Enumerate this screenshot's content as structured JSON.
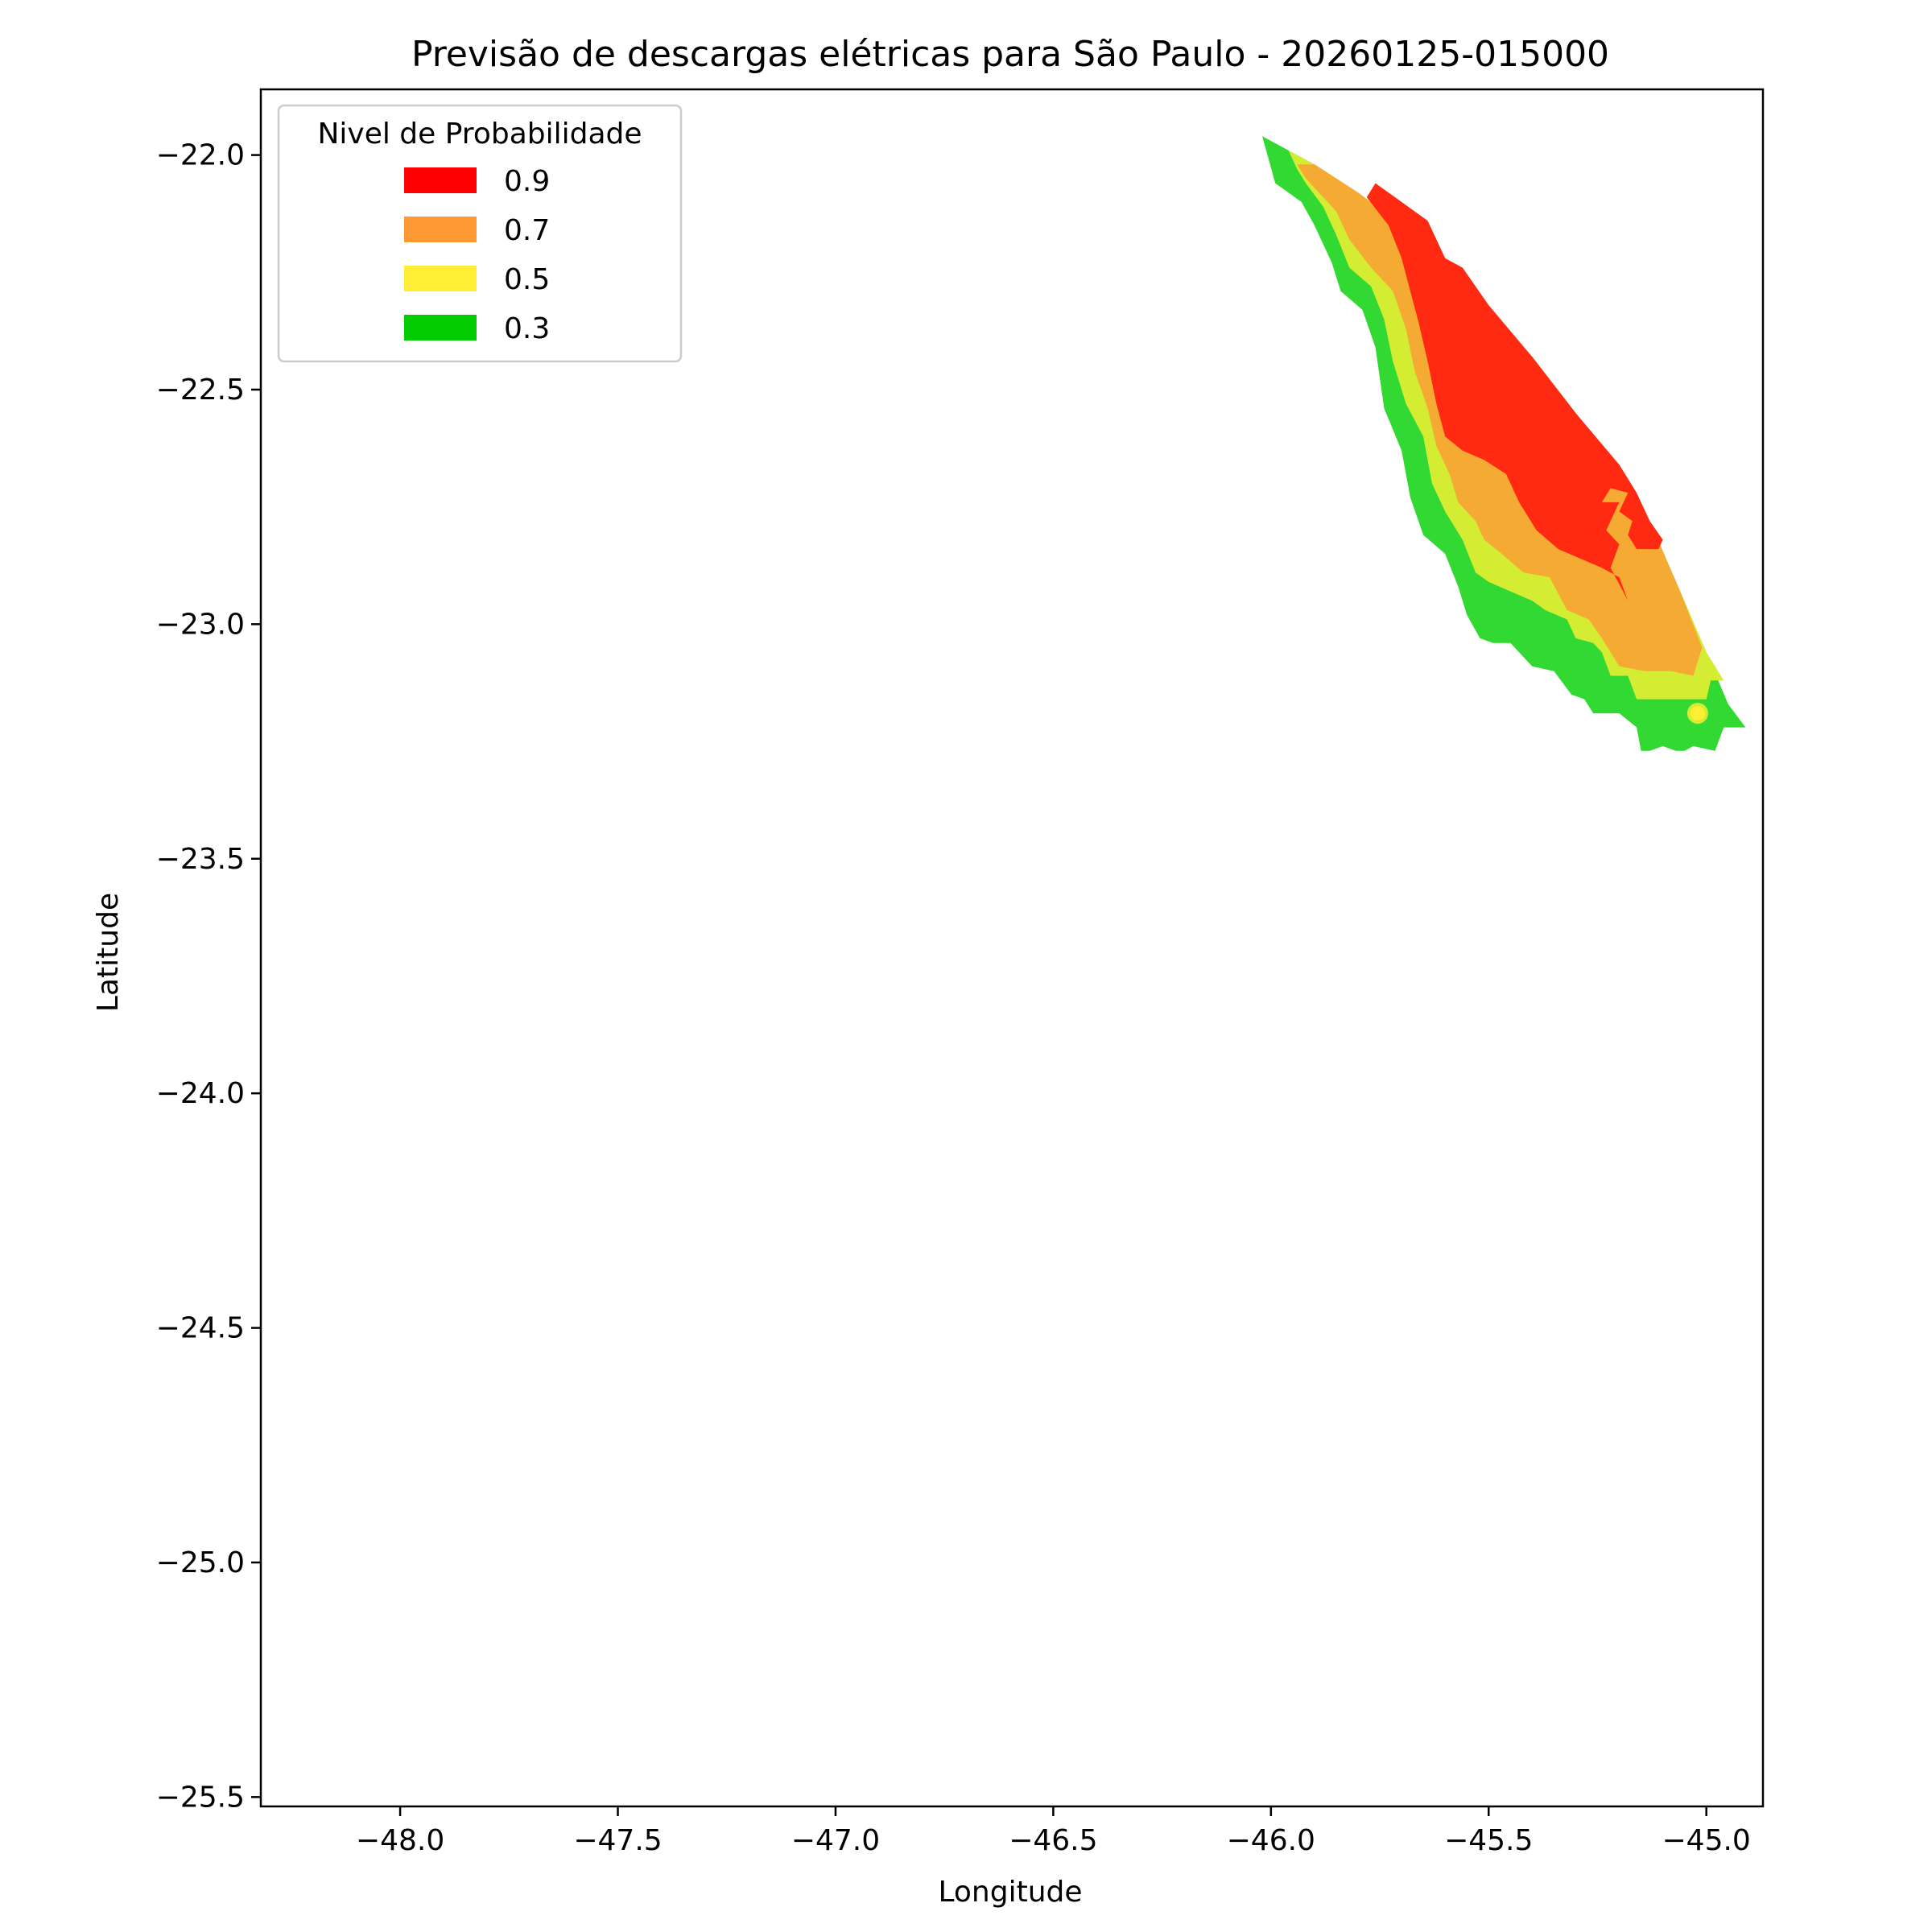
{
  "chart_data": {
    "type": "contour",
    "title": "Previsão de descargas elétricas para São Paulo - 20260125-015000",
    "xlabel": "Longitude",
    "ylabel": "Latitude",
    "xlim": [
      -48.32,
      -44.87
    ],
    "ylim": [
      -25.52,
      -21.86
    ],
    "xticks": [
      -48.0,
      -47.5,
      -47.0,
      -46.5,
      -46.0,
      -45.5,
      -45.0
    ],
    "xtick_labels": [
      "−48.0",
      "−47.5",
      "−47.0",
      "−46.5",
      "−46.0",
      "−45.5",
      "−45.0"
    ],
    "yticks": [
      -22.0,
      -22.5,
      -23.0,
      -23.5,
      -24.0,
      -24.5,
      -25.0,
      -25.5
    ],
    "ytick_labels": [
      "−22.0",
      "−22.5",
      "−23.0",
      "−23.5",
      "−24.0",
      "−24.5",
      "−25.0",
      "−25.5"
    ],
    "grid": false,
    "legend": {
      "title": "Nivel de Probabilidade",
      "placement": "upper-left",
      "entries": [
        {
          "label": "0.9",
          "color": "#ff0000"
        },
        {
          "label": "0.7",
          "color": "#ff9933"
        },
        {
          "label": "0.5",
          "color": "#ffee33"
        },
        {
          "label": "0.3",
          "color": "#00cc00"
        }
      ]
    },
    "levels": [
      {
        "level": 0.3,
        "color": "#33d933",
        "polygon": [
          [
            -46.02,
            -21.96
          ],
          [
            -45.9,
            -22.02
          ],
          [
            -45.8,
            -22.08
          ],
          [
            -45.7,
            -22.15
          ],
          [
            -45.6,
            -22.23
          ],
          [
            -45.5,
            -22.33
          ],
          [
            -45.4,
            -22.43
          ],
          [
            -45.3,
            -22.55
          ],
          [
            -45.2,
            -22.67
          ],
          [
            -45.13,
            -22.78
          ],
          [
            -45.06,
            -22.93
          ],
          [
            -45.0,
            -23.06
          ],
          [
            -44.95,
            -23.17
          ],
          [
            -44.91,
            -23.22
          ],
          [
            -44.96,
            -23.22
          ],
          [
            -44.98,
            -23.27
          ],
          [
            -45.03,
            -23.26
          ],
          [
            -45.05,
            -23.27
          ],
          [
            -45.07,
            -23.27
          ],
          [
            -45.1,
            -23.26
          ],
          [
            -45.13,
            -23.27
          ],
          [
            -45.15,
            -23.27
          ],
          [
            -45.16,
            -23.22
          ],
          [
            -45.2,
            -23.19
          ],
          [
            -45.26,
            -23.19
          ],
          [
            -45.28,
            -23.16
          ],
          [
            -45.31,
            -23.15
          ],
          [
            -45.35,
            -23.1
          ],
          [
            -45.4,
            -23.09
          ],
          [
            -45.45,
            -23.04
          ],
          [
            -45.49,
            -23.04
          ],
          [
            -45.52,
            -23.03
          ],
          [
            -45.55,
            -22.98
          ],
          [
            -45.57,
            -22.92
          ],
          [
            -45.6,
            -22.85
          ],
          [
            -45.65,
            -22.81
          ],
          [
            -45.68,
            -22.73
          ],
          [
            -45.7,
            -22.63
          ],
          [
            -45.74,
            -22.54
          ],
          [
            -45.76,
            -22.41
          ],
          [
            -45.79,
            -22.33
          ],
          [
            -45.84,
            -22.29
          ],
          [
            -45.86,
            -22.23
          ],
          [
            -45.9,
            -22.15
          ],
          [
            -45.93,
            -22.1
          ],
          [
            -45.96,
            -22.08
          ],
          [
            -45.99,
            -22.06
          ]
        ]
      },
      {
        "level": 0.5,
        "color": "#d4ed33",
        "polygon": [
          [
            -45.96,
            -21.99
          ],
          [
            -45.9,
            -22.02
          ],
          [
            -45.8,
            -22.08
          ],
          [
            -45.7,
            -22.15
          ],
          [
            -45.6,
            -22.23
          ],
          [
            -45.5,
            -22.33
          ],
          [
            -45.4,
            -22.43
          ],
          [
            -45.3,
            -22.55
          ],
          [
            -45.2,
            -22.67
          ],
          [
            -45.13,
            -22.78
          ],
          [
            -45.06,
            -22.93
          ],
          [
            -45.0,
            -23.06
          ],
          [
            -44.96,
            -23.12
          ],
          [
            -44.99,
            -23.12
          ],
          [
            -45.0,
            -23.16
          ],
          [
            -45.1,
            -23.16
          ],
          [
            -45.16,
            -23.16
          ],
          [
            -45.18,
            -23.11
          ],
          [
            -45.22,
            -23.11
          ],
          [
            -45.24,
            -23.06
          ],
          [
            -45.26,
            -23.04
          ],
          [
            -45.3,
            -23.03
          ],
          [
            -45.32,
            -22.99
          ],
          [
            -45.37,
            -22.97
          ],
          [
            -45.4,
            -22.95
          ],
          [
            -45.45,
            -22.93
          ],
          [
            -45.5,
            -22.91
          ],
          [
            -45.53,
            -22.89
          ],
          [
            -45.56,
            -22.82
          ],
          [
            -45.6,
            -22.76
          ],
          [
            -45.63,
            -22.7
          ],
          [
            -45.65,
            -22.6
          ],
          [
            -45.69,
            -22.53
          ],
          [
            -45.72,
            -22.44
          ],
          [
            -45.74,
            -22.35
          ],
          [
            -45.77,
            -22.28
          ],
          [
            -45.82,
            -22.24
          ],
          [
            -45.85,
            -22.17
          ],
          [
            -45.88,
            -22.11
          ],
          [
            -45.92,
            -22.06
          ],
          [
            -45.94,
            -22.03
          ]
        ]
      },
      {
        "level": 0.7,
        "color": "#f5aa33",
        "polygon": [
          [
            -45.94,
            -22.02
          ],
          [
            -45.9,
            -22.02
          ],
          [
            -45.8,
            -22.08
          ],
          [
            -45.7,
            -22.15
          ],
          [
            -45.6,
            -22.23
          ],
          [
            -45.5,
            -22.33
          ],
          [
            -45.4,
            -22.43
          ],
          [
            -45.3,
            -22.55
          ],
          [
            -45.2,
            -22.67
          ],
          [
            -45.13,
            -22.78
          ],
          [
            -45.06,
            -22.93
          ],
          [
            -45.01,
            -23.05
          ],
          [
            -45.03,
            -23.11
          ],
          [
            -45.08,
            -23.1
          ],
          [
            -45.14,
            -23.1
          ],
          [
            -45.2,
            -23.09
          ],
          [
            -45.24,
            -23.03
          ],
          [
            -45.27,
            -22.99
          ],
          [
            -45.32,
            -22.97
          ],
          [
            -45.36,
            -22.9
          ],
          [
            -45.42,
            -22.89
          ],
          [
            -45.47,
            -22.85
          ],
          [
            -45.51,
            -22.82
          ],
          [
            -45.53,
            -22.78
          ],
          [
            -45.57,
            -22.74
          ],
          [
            -45.59,
            -22.68
          ],
          [
            -45.62,
            -22.62
          ],
          [
            -45.64,
            -22.54
          ],
          [
            -45.67,
            -22.46
          ],
          [
            -45.69,
            -22.37
          ],
          [
            -45.72,
            -22.29
          ],
          [
            -45.77,
            -22.24
          ],
          [
            -45.82,
            -22.18
          ],
          [
            -45.85,
            -22.12
          ],
          [
            -45.89,
            -22.08
          ],
          [
            -45.92,
            -22.05
          ]
        ]
      },
      {
        "level": 0.9,
        "color": "#ff2a11",
        "polygon": [
          [
            -45.76,
            -22.06
          ],
          [
            -45.7,
            -22.1
          ],
          [
            -45.64,
            -22.14
          ],
          [
            -45.6,
            -22.22
          ],
          [
            -45.56,
            -22.24
          ],
          [
            -45.5,
            -22.32
          ],
          [
            -45.4,
            -22.43
          ],
          [
            -45.3,
            -22.55
          ],
          [
            -45.2,
            -22.66
          ],
          [
            -45.16,
            -22.72
          ],
          [
            -45.13,
            -22.78
          ],
          [
            -45.1,
            -22.82
          ],
          [
            -45.11,
            -22.84
          ],
          [
            -45.16,
            -22.84
          ],
          [
            -45.18,
            -22.81
          ],
          [
            -45.17,
            -22.78
          ],
          [
            -45.2,
            -22.76
          ],
          [
            -45.18,
            -22.72
          ],
          [
            -45.22,
            -22.71
          ],
          [
            -45.24,
            -22.74
          ],
          [
            -45.2,
            -22.74
          ],
          [
            -45.23,
            -22.8
          ],
          [
            -45.2,
            -22.83
          ],
          [
            -45.22,
            -22.88
          ],
          [
            -45.18,
            -22.95
          ],
          [
            -45.2,
            -22.9
          ],
          [
            -45.24,
            -22.88
          ],
          [
            -45.29,
            -22.86
          ],
          [
            -45.34,
            -22.84
          ],
          [
            -45.39,
            -22.8
          ],
          [
            -45.43,
            -22.74
          ],
          [
            -45.46,
            -22.68
          ],
          [
            -45.51,
            -22.65
          ],
          [
            -45.56,
            -22.63
          ],
          [
            -45.6,
            -22.6
          ],
          [
            -45.62,
            -22.53
          ],
          [
            -45.64,
            -22.44
          ],
          [
            -45.66,
            -22.36
          ],
          [
            -45.68,
            -22.29
          ],
          [
            -45.7,
            -22.22
          ],
          [
            -45.73,
            -22.15
          ],
          [
            -45.78,
            -22.09
          ]
        ]
      }
    ],
    "marker": {
      "x": -45.02,
      "y": -23.19,
      "color": "#ffee33"
    }
  }
}
